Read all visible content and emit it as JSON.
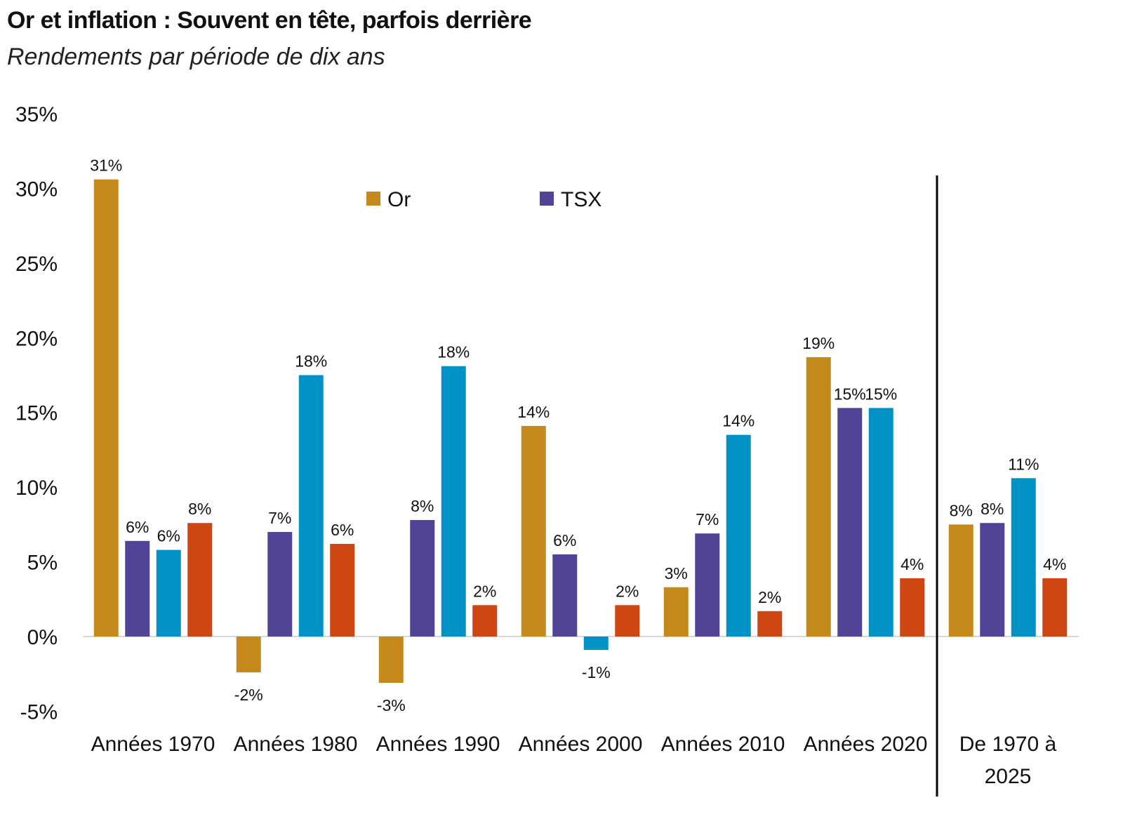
{
  "chart_data": {
    "type": "bar",
    "title": "Or et inflation : Souvent en tête, parfois derrière",
    "subtitle": "Rendements par période de dix ans",
    "categories": [
      "Années 1970",
      "Années 1980",
      "Années 1990",
      "Années 2000",
      "Années 2010",
      "Années 2020",
      "De 1970 à 2025"
    ],
    "series": [
      {
        "name": "Or",
        "color": "#C4891A",
        "values": [
          30.6,
          -2.4,
          -3.1,
          14.1,
          3.3,
          18.7,
          7.5
        ],
        "labels": [
          "31%",
          "-2%",
          "-3%",
          "14%",
          "3%",
          "19%",
          "8%"
        ]
      },
      {
        "name": "TSX",
        "color": "#514496",
        "values": [
          6.4,
          7.0,
          7.8,
          5.5,
          6.9,
          15.3,
          7.6
        ],
        "labels": [
          "6%",
          "7%",
          "8%",
          "6%",
          "7%",
          "15%",
          "8%"
        ]
      },
      {
        "color": "#0092C5",
        "values": [
          5.8,
          17.5,
          18.1,
          -0.9,
          13.5,
          15.3,
          10.6
        ],
        "labels": [
          "6%",
          "18%",
          "18%",
          "-1%",
          "14%",
          "15%",
          "11%"
        ]
      },
      {
        "color": "#CC4712",
        "values": [
          7.6,
          6.2,
          2.1,
          2.1,
          1.7,
          3.9,
          3.9
        ],
        "labels": [
          "8%",
          "6%",
          "2%",
          "2%",
          "2%",
          "4%",
          "4%"
        ]
      }
    ],
    "ylim": [
      -5,
      35
    ],
    "yticks": [
      -5,
      0,
      5,
      10,
      15,
      20,
      25,
      30,
      35
    ],
    "ytick_labels": [
      "-5%",
      "0%",
      "5%",
      "10%",
      "15%",
      "20%",
      "25%",
      "30%",
      "35%"
    ],
    "grid": false,
    "legend_placement": "top-center",
    "separator_before_category": "De 1970 à 2025"
  }
}
